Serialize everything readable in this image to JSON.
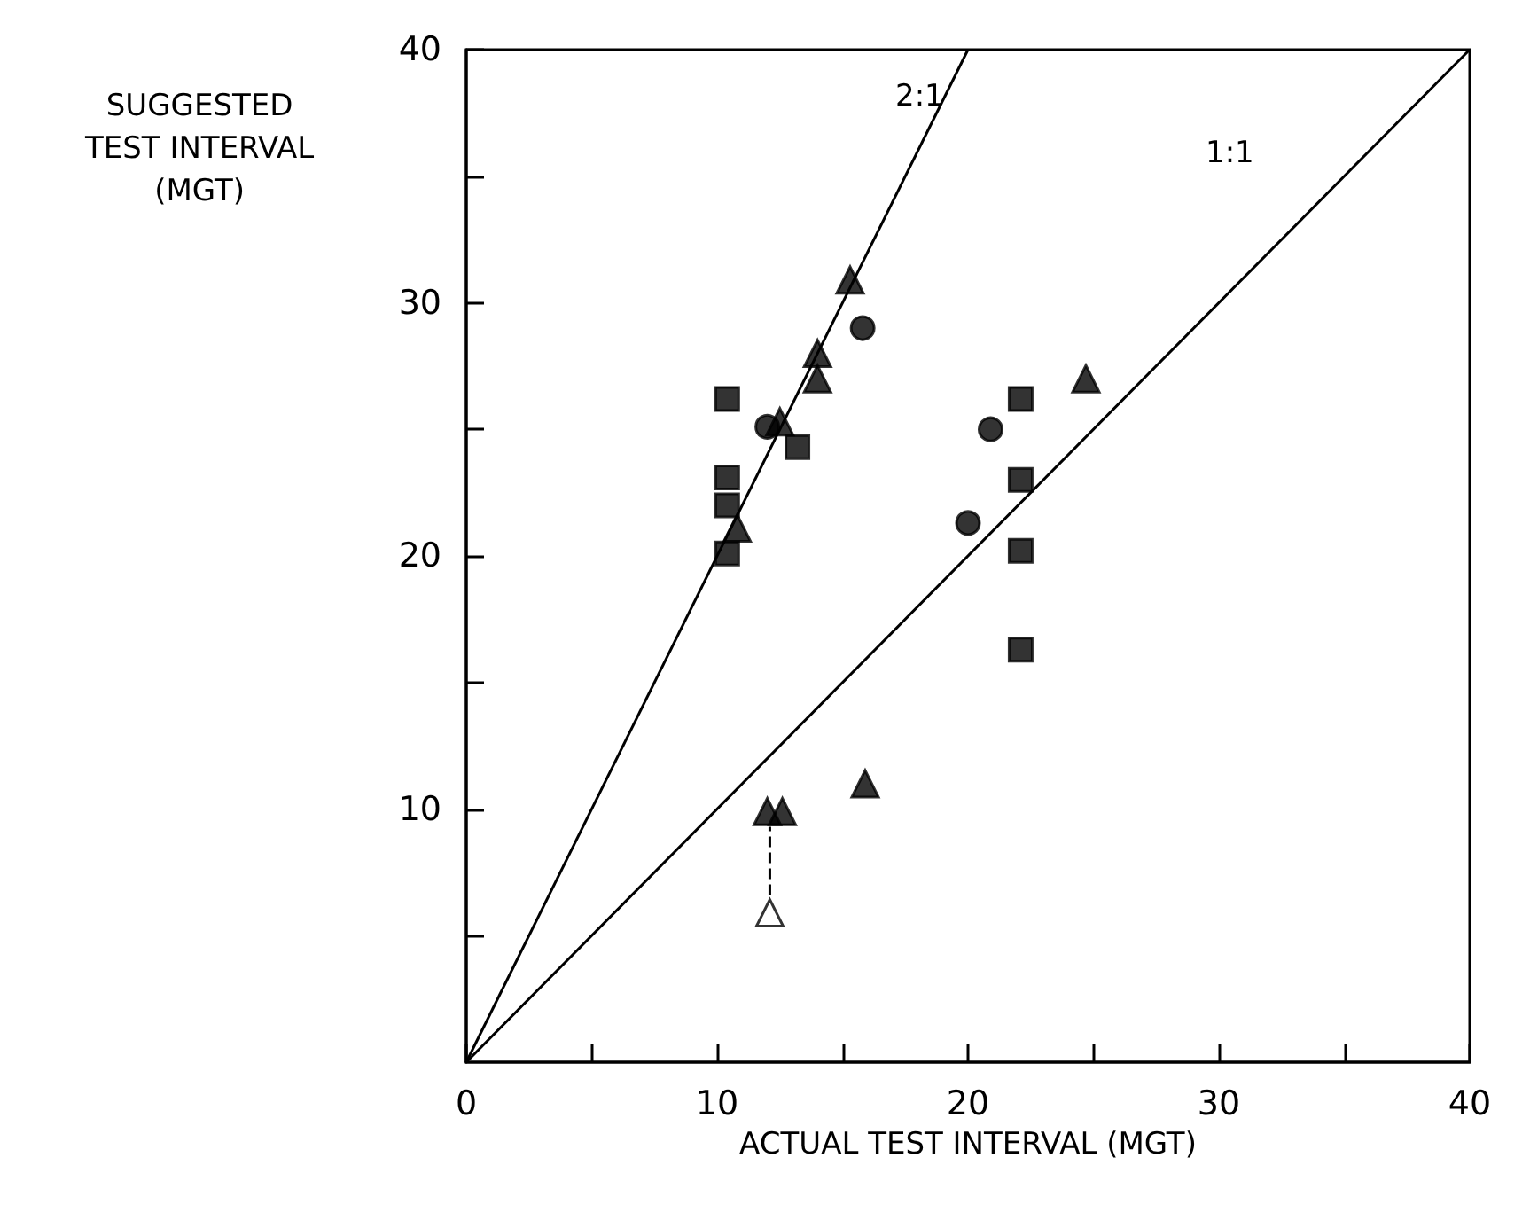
{
  "chart_data": {
    "type": "scatter",
    "xlabel": "ACTUAL TEST INTERVAL (MGT)",
    "ylabel": "SUGGESTED\nTEST INTERVAL\n(MGT)",
    "xlim": [
      0,
      40
    ],
    "ylim": [
      0,
      40
    ],
    "xticks": [
      0,
      {
        "value": 5,
        "label": null
      },
      10,
      {
        "value": 15,
        "label": null
      },
      20,
      {
        "value": 25,
        "label": null
      },
      30,
      {
        "value": 35,
        "label": null
      },
      40
    ],
    "yticks": [
      {
        "value": 5,
        "label": null
      },
      10,
      {
        "value": 15,
        "label": null
      },
      20,
      {
        "value": 25,
        "label": null
      },
      30,
      {
        "value": 35,
        "label": null
      },
      40
    ],
    "grid": false,
    "series": [
      {
        "color": "#000000",
        "marker": "square",
        "x": [
          10.4,
          10.4,
          10.4,
          10.4,
          13.2,
          22.1,
          22.1,
          22.1,
          22.1
        ],
        "values": [
          26.2,
          23.1,
          22.0,
          20.1,
          24.3,
          26.2,
          23.0,
          20.2,
          16.3
        ]
      },
      {
        "color": "#000000",
        "marker": "triangle",
        "x": [
          10.8,
          12.5,
          14.0,
          14.0,
          15.3,
          24.7,
          12.0,
          12.6,
          15.9
        ],
        "values": [
          21.1,
          25.3,
          27.0,
          28.0,
          30.9,
          27.0,
          9.9,
          9.9,
          11.0
        ]
      },
      {
        "color": "#000000",
        "marker": "circle",
        "x": [
          12.0,
          15.8,
          20.9,
          20.0
        ],
        "values": [
          25.1,
          29.0,
          25.0,
          21.3
        ]
      },
      {
        "color": "#ffffff",
        "marker": "triangle",
        "x": [
          12.1
        ],
        "values": [
          5.9
        ]
      },
      {
        "type": "line",
        "color": "#000000",
        "marker": "none",
        "line_style": "dashed",
        "x": [
          12.1,
          12.1
        ],
        "values": [
          6.6,
          9.3
        ]
      },
      {
        "type": "line",
        "color": "#000000",
        "marker": "none",
        "line_style": "solid",
        "x": [
          0,
          20
        ],
        "values": [
          0,
          40
        ]
      },
      {
        "type": "line",
        "color": "#000000",
        "marker": "none",
        "line_style": "solid",
        "x": [
          0,
          40
        ],
        "values": [
          0,
          40
        ]
      }
    ],
    "annotations": [
      "2:1",
      "1:1"
    ]
  }
}
